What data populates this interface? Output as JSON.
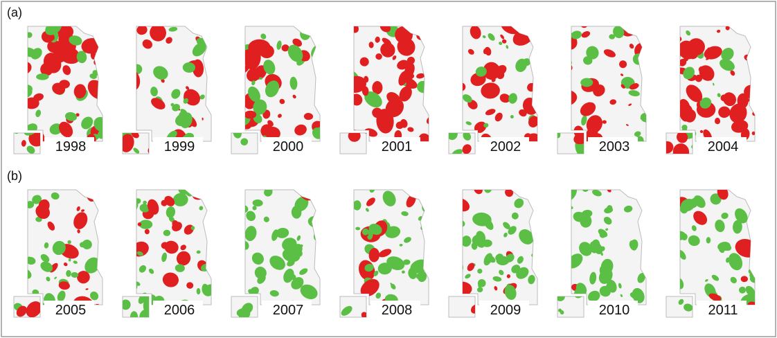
{
  "rows": [
    {
      "label": "(a)",
      "years": [
        "1998",
        "1999",
        "2000",
        "2001",
        "2002",
        "2003",
        "2004"
      ]
    },
    {
      "label": "(b)",
      "years": [
        "2005",
        "2006",
        "2007",
        "2008",
        "2009",
        "2010",
        "2011"
      ]
    }
  ]
}
